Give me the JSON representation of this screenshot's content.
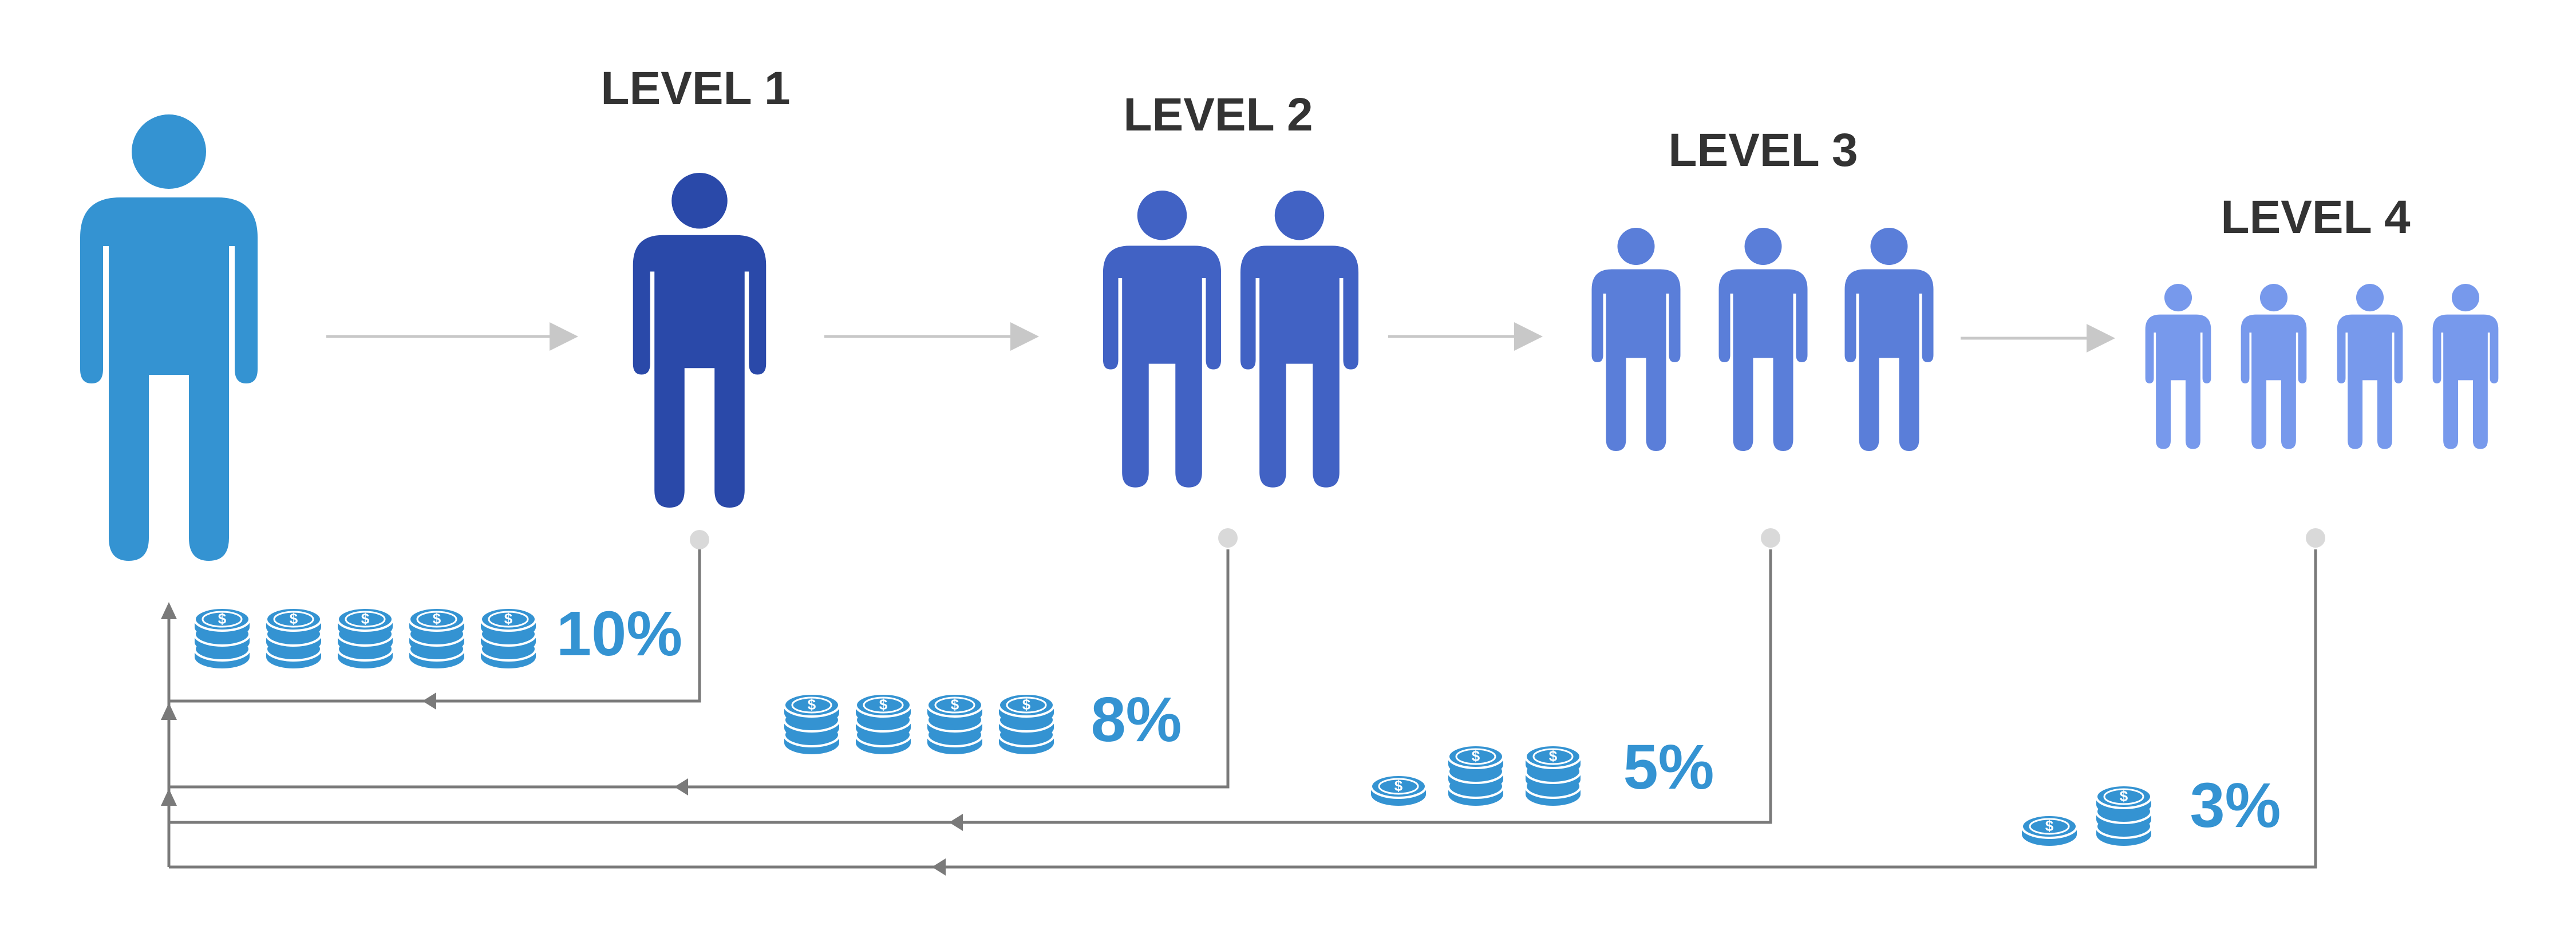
{
  "diagram": {
    "colors": {
      "referrer": "#3493d2",
      "level1": "#2a49a9",
      "level2": "#4162c4",
      "level3": "#5a7ed9",
      "level4": "#7799ec",
      "coin": "#3493d2",
      "arrow": "#7a7a7a",
      "arrow_light": "#c8c8c8",
      "dot": "#d9d9d9",
      "text_dark": "#333333",
      "text_percent": "#3493d2"
    },
    "levels": [
      {
        "label": "LEVEL 1",
        "people_count": 1,
        "percent_label": "10%",
        "coin_stacks": 5
      },
      {
        "label": "LEVEL 2",
        "people_count": 2,
        "percent_label": "8%",
        "coin_stacks": 4
      },
      {
        "label": "LEVEL 3",
        "people_count": 3,
        "percent_label": "5%",
        "coin_stacks": 3
      },
      {
        "label": "LEVEL 4",
        "people_count": 4,
        "percent_label": "3%",
        "coin_stacks": 2
      }
    ]
  }
}
